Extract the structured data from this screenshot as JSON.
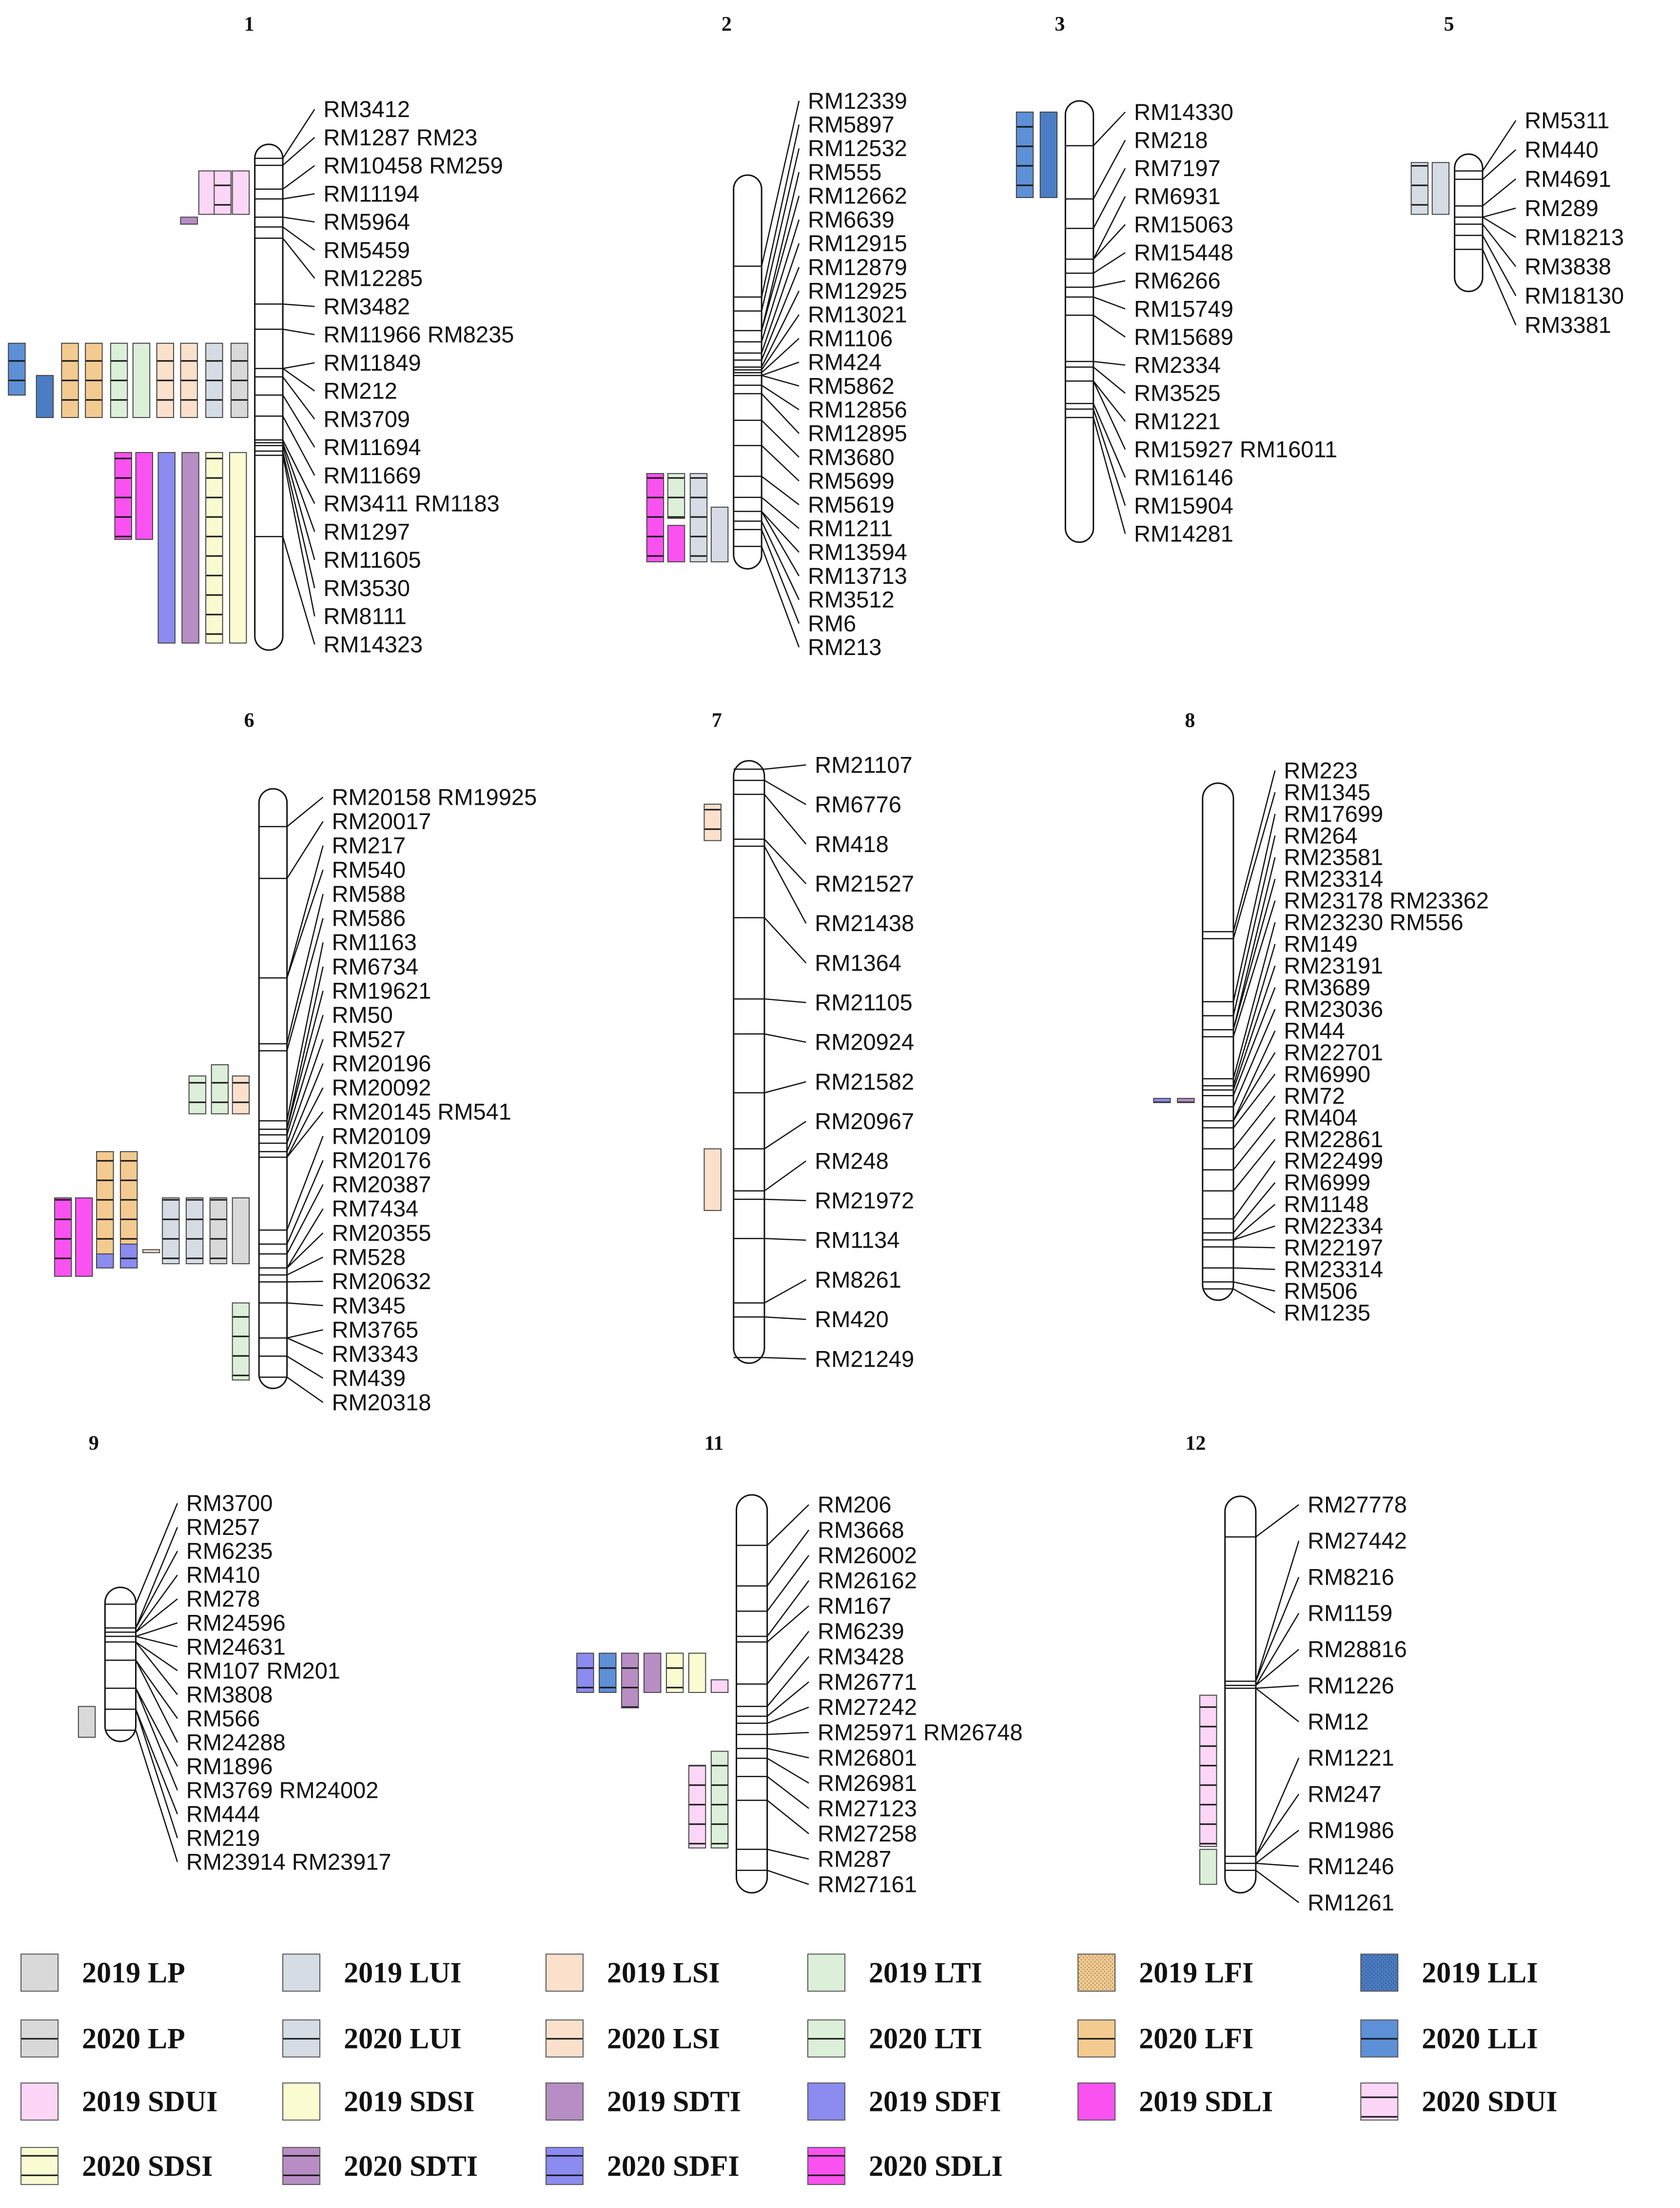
{
  "trait_colors": {
    "2019 LP": "#d9d9d9",
    "2020 LP": "#d9d9d9",
    "2019 LUI": "#d5dce4",
    "2020 LUI": "#d5dce4",
    "2019 LSI": "#fbe0cc",
    "2020 LSI": "#fbe0cc",
    "2019 LTI": "#dcefd8",
    "2020 LTI": "#dcefd8",
    "2019 LFI": "#f3cb90",
    "2020 LFI": "#f3cb90",
    "2019 LLI": "#4b7dc4",
    "2020 LLI": "#5d90d6",
    "2019 SDUI": "#fcd6f6",
    "2020 SDUI": "#fcd6f6",
    "2019 SDSI": "#fbfbd2",
    "2020 SDSI": "#fbfbd2",
    "2019 SDTI": "#b78ec4",
    "2020 SDTI": "#b78ec4",
    "2019 SDFI": "#8b8bf0",
    "2020 SDFI": "#8b8bf0",
    "2019 SDLI": "#fa52f0",
    "2020 SDLI": "#fa52f0"
  },
  "chromosomes": [
    {
      "number": "1",
      "markers": [
        "RM3412",
        "RM1287 RM23",
        "RM10458 RM259",
        "RM11194",
        "RM5964",
        "RM5459",
        "RM12285",
        "RM3482",
        "RM11966 RM8235",
        "RM11849",
        "RM212",
        "RM3709",
        "RM11694",
        "RM11669",
        "RM3411 RM1183",
        "RM1297",
        "RM11605",
        "RM3530",
        "RM8111",
        "RM14323"
      ],
      "qtls": [
        {
          "trait": "2019 SDUI"
        },
        {
          "trait": "2020 SDUI"
        },
        {
          "trait": "2019 SDUI"
        },
        {
          "trait": "2020 SDTI"
        },
        {
          "trait": "2020 LLI"
        },
        {
          "trait": "2019 LLI"
        },
        {
          "trait": "2020 LFI"
        },
        {
          "trait": "2020 LFI"
        },
        {
          "trait": "2020 LTI"
        },
        {
          "trait": "2019 LTI"
        },
        {
          "trait": "2020 LSI"
        },
        {
          "trait": "2020 LSI"
        },
        {
          "trait": "2020 LUI"
        },
        {
          "trait": "2020 LP"
        },
        {
          "trait": "2020 SDLI"
        },
        {
          "trait": "2019 SDLI"
        },
        {
          "trait": "2019 SDFI"
        },
        {
          "trait": "2019 SDTI"
        },
        {
          "trait": "2020 SDSI"
        },
        {
          "trait": "2019 SDSI"
        }
      ]
    },
    {
      "number": "2",
      "markers": [
        "RM12339",
        "RM5897",
        "RM12532",
        "RM555",
        "RM12662",
        "RM6639",
        "RM12915",
        "RM12879",
        "RM12925",
        "RM13021",
        "RM1106",
        "RM424",
        "RM5862",
        "RM12856",
        "RM12895",
        "RM3680",
        "RM5699",
        "RM5619",
        "RM1211",
        "RM13594",
        "RM13713",
        "RM3512",
        "RM6",
        "RM213"
      ],
      "qtls": [
        {
          "trait": "2020 SDLI"
        },
        {
          "trait": "2020 LTI"
        },
        {
          "trait": "2019 SDLI"
        },
        {
          "trait": "2020 LUI"
        },
        {
          "trait": "2019 LUI"
        }
      ]
    },
    {
      "number": "3",
      "markers": [
        "RM14330",
        "RM218",
        "RM7197",
        "RM6931",
        "RM15063",
        "RM15448",
        "RM6266",
        "RM15749",
        "RM15689",
        "RM2334",
        "RM3525",
        "RM1221",
        "RM15927 RM16011",
        "RM16146",
        "RM15904",
        "RM14281"
      ],
      "qtls": [
        {
          "trait": "2020 LLI"
        },
        {
          "trait": "2019 LLI"
        }
      ]
    },
    {
      "number": "5",
      "markers": [
        "RM5311",
        "RM440",
        "RM4691",
        "RM289",
        "RM18213",
        "RM3838",
        "RM18130",
        "RM3381"
      ],
      "qtls": [
        {
          "trait": "2020 LUI"
        },
        {
          "trait": "2019 LUI"
        }
      ]
    },
    {
      "number": "6",
      "markers": [
        "RM20158 RM19925",
        "RM20017",
        "RM217",
        "RM540",
        "RM588",
        "RM586",
        "RM1163",
        "RM6734",
        "RM19621",
        "RM50",
        "RM527",
        "RM20196",
        "RM20092",
        "RM20145 RM541",
        "RM20109",
        "RM20176",
        "RM20387",
        "RM7434",
        "RM20355",
        "RM528",
        "RM20632",
        "RM345",
        "RM3765",
        "RM3343",
        "RM439",
        "RM20318"
      ],
      "qtls": [
        {
          "trait": "2020 LTI"
        },
        {
          "trait": "2020 LTI"
        },
        {
          "trait": "2020 LSI"
        },
        {
          "trait": "2020 SDLI"
        },
        {
          "trait": "2019 SDLI"
        },
        {
          "trait": "2020 LFI"
        },
        {
          "trait": "2020 LFI"
        },
        {
          "trait": "2019 SDFI"
        },
        {
          "trait": "2020 SDFI"
        },
        {
          "trait": "2020 LSI"
        },
        {
          "trait": "2020 LUI"
        },
        {
          "trait": "2020 LUI"
        },
        {
          "trait": "2020 LP"
        },
        {
          "trait": "2019 LP"
        },
        {
          "trait": "2020 LTI"
        }
      ]
    },
    {
      "number": "7",
      "markers": [
        "RM21107",
        "RM6776",
        "RM418",
        "RM21527",
        "RM21438",
        "RM1364",
        "RM21105",
        "RM20924",
        "RM21582",
        "RM20967",
        "RM248",
        "RM21972",
        "RM1134",
        "RM8261",
        "RM420",
        "RM21249"
      ],
      "qtls": [
        {
          "trait": "2020 LSI"
        },
        {
          "trait": "2019 LSI"
        }
      ]
    },
    {
      "number": "8",
      "markers": [
        "RM223",
        "RM1345",
        "RM17699",
        "RM264",
        "RM23581",
        "RM23314",
        "RM23178 RM23362",
        "RM23230 RM556",
        "RM149",
        "RM23191",
        "RM3689",
        "RM23036",
        "RM44",
        "RM22701",
        "RM6990",
        "RM72",
        "RM404",
        "RM22861",
        "RM22499",
        "RM6999",
        "RM1148",
        "RM22334",
        "RM22197",
        "RM23314",
        "RM506",
        "RM1235"
      ],
      "qtls": [
        {
          "trait": "2020 SDFI"
        },
        {
          "trait": "2020 SDTI"
        }
      ]
    },
    {
      "number": "9",
      "markers": [
        "RM3700",
        "RM257",
        "RM6235",
        "RM410",
        "RM278",
        "RM24596",
        "RM24631",
        "RM107 RM201",
        "RM3808",
        "RM566",
        "RM24288",
        "RM1896",
        "RM3769 RM24002",
        "RM444",
        "RM219",
        "RM23914 RM23917"
      ],
      "qtls": [
        {
          "trait": "2019 LP"
        }
      ]
    },
    {
      "number": "11",
      "markers": [
        "RM206",
        "RM3668",
        "RM26002",
        "RM26162",
        "RM167",
        "RM6239",
        "RM3428",
        "RM26771",
        "RM27242",
        "RM25971 RM26748",
        "RM26801",
        "RM26981",
        "RM27123",
        "RM27258",
        "RM287",
        "RM27161"
      ],
      "qtls": [
        {
          "trait": "2020 SDFI"
        },
        {
          "trait": "2020 LLI"
        },
        {
          "trait": "2020 SDTI"
        },
        {
          "trait": "2019 SDTI"
        },
        {
          "trait": "2020 SDSI"
        },
        {
          "trait": "2019 SDSI"
        },
        {
          "trait": "2019 SDUI"
        },
        {
          "trait": "2020 SDUI"
        },
        {
          "trait": "2020 LTI"
        }
      ]
    },
    {
      "number": "12",
      "markers": [
        "RM27778",
        "RM27442",
        "RM8216",
        "RM1159",
        "RM28816",
        "RM1226",
        "RM12",
        "RM1221",
        "RM247",
        "RM1986",
        "RM1246",
        "RM1261"
      ],
      "qtls": [
        {
          "trait": "2020 SDUI"
        },
        {
          "trait": "2019 LTI"
        }
      ]
    }
  ],
  "legend": [
    {
      "label": "2019 LP",
      "trait": "2019 LP",
      "pattern": "solid"
    },
    {
      "label": "2019 LUI",
      "trait": "2019 LUI",
      "pattern": "solid"
    },
    {
      "label": "2019 LSI",
      "trait": "2019 LSI",
      "pattern": "solid"
    },
    {
      "label": "2019 LTI",
      "trait": "2019 LTI",
      "pattern": "solid"
    },
    {
      "label": "2019 LFI",
      "trait": "2019 LFI",
      "pattern": "dots"
    },
    {
      "label": "2019 LLI",
      "trait": "2019 LLI",
      "pattern": "dots"
    },
    {
      "label": "2020 LP",
      "trait": "2020 LP",
      "pattern": "lines"
    },
    {
      "label": "2020 LUI",
      "trait": "2020 LUI",
      "pattern": "lines"
    },
    {
      "label": "2020 LSI",
      "trait": "2020 LSI",
      "pattern": "lines"
    },
    {
      "label": "2020 LTI",
      "trait": "2020 LTI",
      "pattern": "lines"
    },
    {
      "label": "2020 LFI",
      "trait": "2020 LFI",
      "pattern": "lines"
    },
    {
      "label": "2020 LLI",
      "trait": "2020 LLI",
      "pattern": "lines"
    },
    {
      "label": "2019 SDUI",
      "trait": "2019 SDUI",
      "pattern": "solid"
    },
    {
      "label": "2019 SDSI",
      "trait": "2019 SDSI",
      "pattern": "solid"
    },
    {
      "label": "2019 SDTI",
      "trait": "2019 SDTI",
      "pattern": "solid"
    },
    {
      "label": "2019 SDFI",
      "trait": "2019 SDFI",
      "pattern": "solid"
    },
    {
      "label": "2019 SDLI",
      "trait": "2019 SDLI",
      "pattern": "solid"
    },
    {
      "label": "2020 SDUI",
      "trait": "2020 SDUI",
      "pattern": "lines"
    },
    {
      "label": "2020 SDSI",
      "trait": "2020 SDSI",
      "pattern": "lines"
    },
    {
      "label": "2020 SDTI",
      "trait": "2020 SDTI",
      "pattern": "lines"
    },
    {
      "label": "2020 SDFI",
      "trait": "2020 SDFI",
      "pattern": "lines"
    },
    {
      "label": "2020 SDLI",
      "trait": "2020 SDLI",
      "pattern": "lines"
    }
  ]
}
